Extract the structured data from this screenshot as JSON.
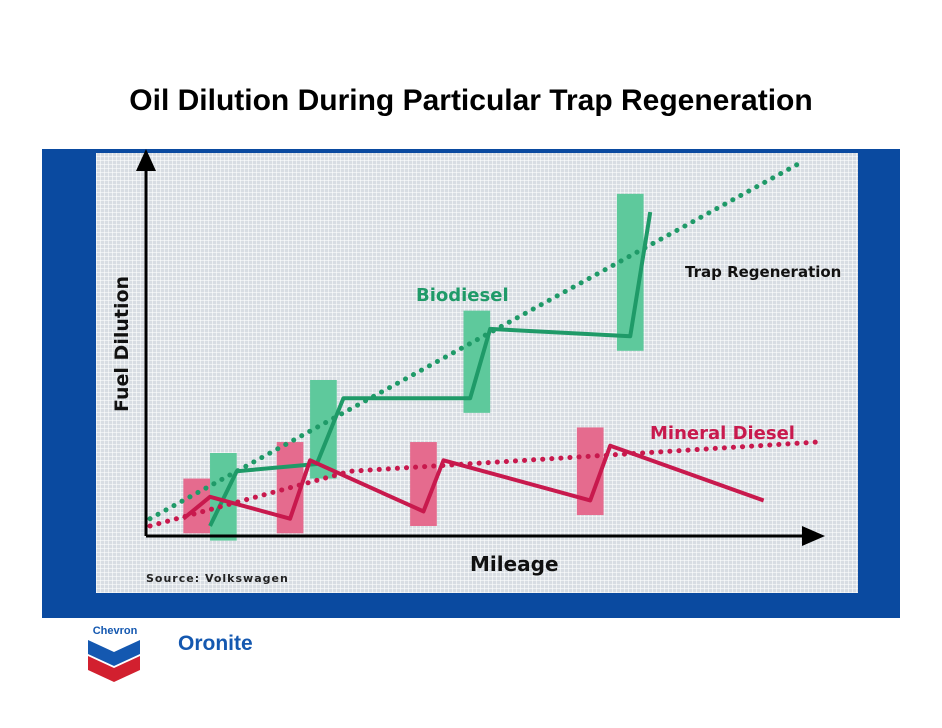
{
  "title": "Oil Dilution During Particular Trap Regeneration",
  "source": "Source: Volkswagen",
  "brand": {
    "chevron_text": "Chevron",
    "name": "Oronite"
  },
  "colors": {
    "panel": "#0a4aa0",
    "biodiesel": "#1f9a68",
    "mineral": "#c8194d",
    "biodiesel_band": "#5ec99c",
    "mineral_band": "#e56b8e"
  },
  "chart_data": {
    "type": "line",
    "xlabel": "Mileage",
    "ylabel": "Fuel Dilution",
    "x_range": [
      0,
      100
    ],
    "y_range": [
      0,
      100
    ],
    "annotations": [
      "Trap Regeneration"
    ],
    "series": [
      {
        "name": "Biodiesel",
        "style": "solid",
        "points": [
          [
            9,
            0
          ],
          [
            13,
            15
          ],
          [
            25,
            17
          ],
          [
            29,
            35
          ],
          [
            48,
            35
          ],
          [
            51,
            54
          ],
          [
            72,
            52
          ],
          [
            75,
            86
          ]
        ]
      },
      {
        "name": "Biodiesel",
        "style": "dotted",
        "points": [
          [
            0,
            2
          ],
          [
            98,
            100
          ]
        ]
      },
      {
        "name": "Mineral Diesel",
        "style": "solid",
        "points": [
          [
            5,
            2
          ],
          [
            9,
            8
          ],
          [
            21,
            2
          ],
          [
            24,
            18
          ],
          [
            41,
            4
          ],
          [
            44,
            18
          ],
          [
            66,
            7
          ],
          [
            69,
            22
          ],
          [
            92,
            7
          ]
        ]
      },
      {
        "name": "Mineral Diesel",
        "style": "dotted",
        "points": [
          [
            0,
            0
          ],
          [
            30,
            15
          ],
          [
            100,
            23
          ]
        ]
      }
    ],
    "regeneration_bands": {
      "Biodiesel": [
        [
          9,
          13
        ],
        [
          24,
          28
        ],
        [
          47,
          51
        ],
        [
          70,
          74
        ]
      ],
      "Mineral Diesel": [
        [
          5,
          9
        ],
        [
          19,
          23
        ],
        [
          39,
          43
        ],
        [
          64,
          68
        ]
      ]
    }
  }
}
